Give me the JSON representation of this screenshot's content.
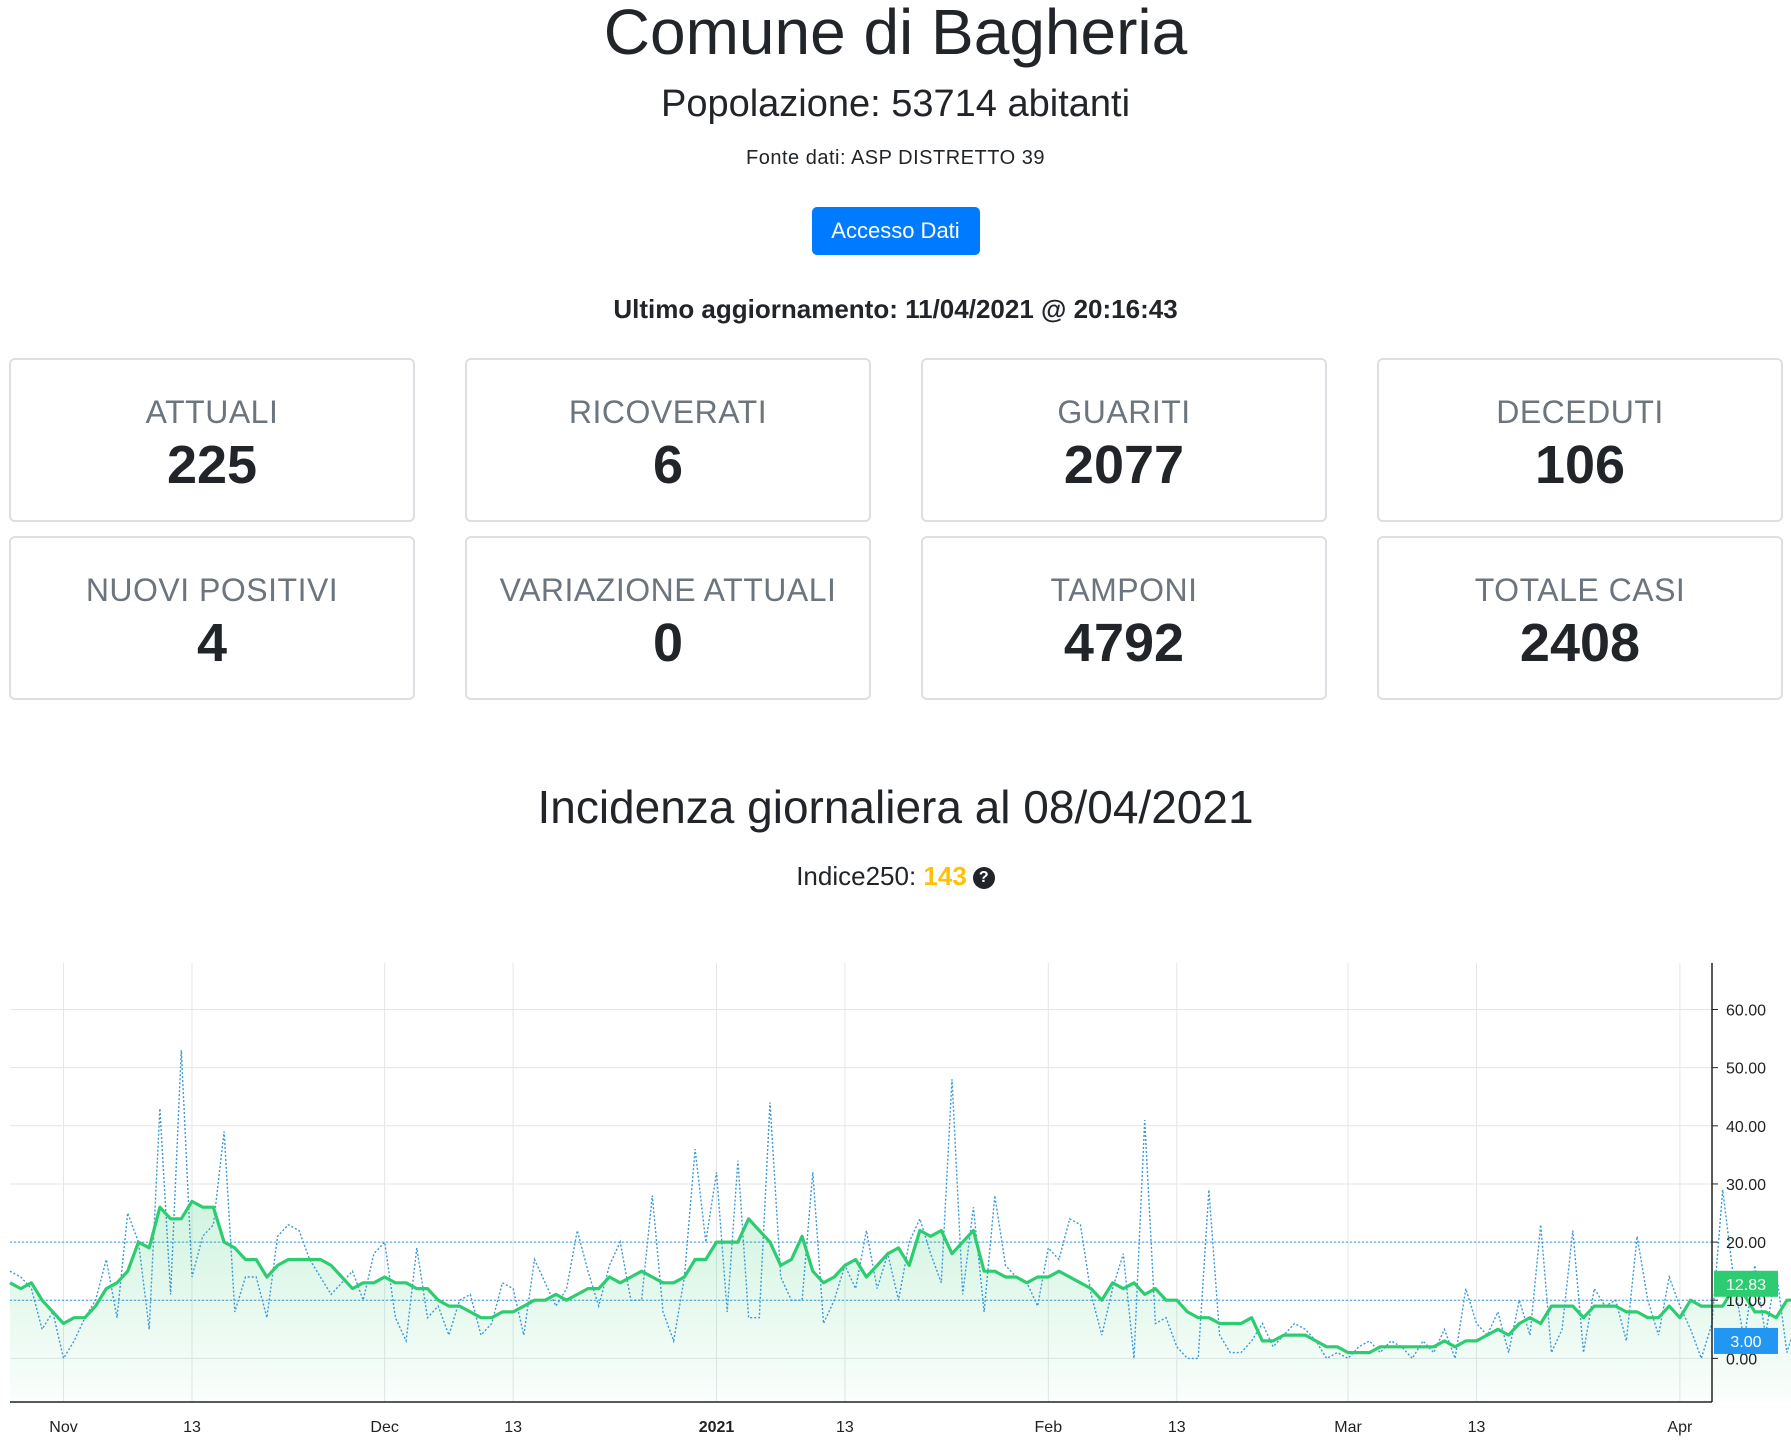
{
  "header": {
    "title": "Comune di Bagheria",
    "population": "Popolazione: 53714 abitanti",
    "source": "Fonte dati: ASP DISTRETTO 39",
    "button_label": "Accesso Dati",
    "last_update": "Ultimo aggiornamento: 11/04/2021 @ 20:16:43"
  },
  "stats": [
    {
      "label": "ATTUALI",
      "value": "225"
    },
    {
      "label": "RICOVERATI",
      "value": "6"
    },
    {
      "label": "GUARITI",
      "value": "2077"
    },
    {
      "label": "DECEDUTI",
      "value": "106"
    },
    {
      "label": "NUOVI POSITIVI",
      "value": "4"
    },
    {
      "label": "VARIAZIONE ATTUALI",
      "value": "0"
    },
    {
      "label": "TAMPONI",
      "value": "4792"
    },
    {
      "label": "TOTALE CASI",
      "value": "2408"
    }
  ],
  "incidence": {
    "title": "Incidenza giornaliera al 08/04/2021",
    "index_label": "Indice250: ",
    "index_value": "143",
    "help_icon": "question-circle-icon"
  },
  "colors": {
    "primary": "#007bff",
    "index": "#ffc107",
    "moving_avg": "#2ecc71",
    "daily": "#3a9ad9"
  },
  "chart_data": {
    "type": "line",
    "x_ticks": [
      "Nov",
      "13",
      "Dec",
      "13",
      "2021",
      "13",
      "Feb",
      "13",
      "Mar",
      "13",
      "Apr"
    ],
    "x_tick_dates": [
      "2020-11-01",
      "2020-11-13",
      "2020-12-01",
      "2020-12-13",
      "2021-01-01",
      "2021-01-13",
      "2021-02-01",
      "2021-02-13",
      "2021-03-01",
      "2021-03-13",
      "2021-04-01"
    ],
    "x_range": [
      "2020-10-27",
      "2021-04-04"
    ],
    "y_ticks": [
      "0.00",
      "10.00",
      "20.00",
      "30.00",
      "40.00",
      "50.00",
      "60.00"
    ],
    "y_range": [
      -7.5,
      68
    ],
    "reference_lines": [
      20,
      10
    ],
    "last_value_labels": [
      {
        "text": "12.83",
        "value": 12.83,
        "color": "#2ecc71"
      },
      {
        "text": "3.00",
        "value": 3.0,
        "color": "#2196f3"
      }
    ],
    "grid": true,
    "series": [
      {
        "style": "dotted",
        "values": [
          15,
          14,
          12,
          5,
          8,
          0,
          3,
          7,
          10,
          17,
          7,
          25,
          20,
          5,
          43,
          11,
          53,
          14,
          21,
          23,
          39,
          8,
          14,
          14,
          7,
          21,
          23,
          22,
          17,
          14,
          11,
          13,
          15,
          10,
          18,
          20,
          7,
          3,
          19,
          7,
          9,
          4,
          10,
          11,
          4,
          6,
          13,
          12,
          4,
          17,
          13,
          9,
          12,
          22,
          15,
          9,
          16,
          20,
          10,
          10,
          28,
          8,
          3,
          14,
          36,
          20,
          32,
          8,
          34,
          7,
          7,
          44,
          14,
          10,
          10,
          32,
          6,
          10,
          16,
          12,
          22,
          12,
          18,
          10,
          20,
          24,
          18,
          13,
          48,
          11,
          26,
          8,
          28,
          16,
          14,
          13,
          9,
          19,
          17,
          24,
          23,
          11,
          4,
          12,
          18,
          0,
          41,
          6,
          7,
          2,
          0,
          0,
          29,
          4,
          1,
          1,
          3,
          6,
          2,
          4,
          6,
          5,
          3,
          0,
          1,
          0,
          2,
          3,
          1,
          3,
          2,
          0,
          3,
          1,
          5,
          0,
          12,
          6,
          4,
          8,
          1,
          10,
          4,
          23,
          1,
          5,
          22,
          1,
          12,
          9,
          10,
          3,
          21,
          10,
          4,
          14,
          9,
          5,
          0,
          6,
          29,
          14,
          3,
          16,
          4,
          15,
          1,
          7,
          13,
          12,
          22,
          12,
          10,
          3
        ]
      },
      {
        "style": "solid",
        "values": [
          13,
          12,
          13,
          10,
          8,
          6,
          7,
          7,
          9,
          12,
          13,
          15,
          20,
          19,
          26,
          24,
          24,
          27,
          26,
          26,
          20,
          19,
          17,
          17,
          14,
          16,
          17,
          17,
          17,
          17,
          16,
          14,
          12,
          13,
          13,
          14,
          13,
          13,
          12,
          12,
          10,
          9,
          9,
          8,
          7,
          7,
          8,
          8,
          9,
          10,
          10,
          11,
          10,
          11,
          12,
          12,
          14,
          13,
          14,
          15,
          14,
          13,
          13,
          14,
          17,
          17,
          20,
          20,
          20,
          24,
          22,
          20,
          16,
          17,
          21,
          15,
          13,
          14,
          16,
          17,
          14,
          16,
          18,
          19,
          16,
          22,
          21,
          22,
          18,
          20,
          22,
          15,
          15,
          14,
          14,
          13,
          14,
          14,
          15,
          14,
          13,
          12,
          10,
          13,
          12,
          13,
          11,
          12,
          10,
          10,
          8,
          7,
          7,
          6,
          6,
          6,
          7,
          3,
          3,
          4,
          4,
          4,
          3,
          2,
          2,
          1,
          1,
          1,
          2,
          2,
          2,
          2,
          2,
          2,
          3,
          2,
          3,
          3,
          4,
          5,
          4,
          6,
          7,
          6,
          9,
          9,
          9,
          7,
          9,
          9,
          9,
          8,
          8,
          7,
          7,
          9,
          7,
          10,
          9,
          9,
          9,
          12,
          11,
          8,
          8,
          7,
          10,
          10,
          11,
          10,
          9,
          13,
          13,
          13
        ]
      }
    ]
  }
}
